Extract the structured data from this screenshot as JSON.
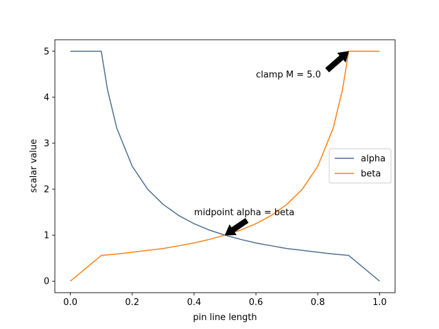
{
  "chart_data": {
    "type": "line",
    "xlabel": "pin line length",
    "ylabel": "scalar value",
    "xlim": [
      -0.05,
      1.05
    ],
    "ylim": [
      -0.25,
      5.25
    ],
    "xticks": [
      0.0,
      0.2,
      0.4,
      0.6,
      0.8,
      1.0
    ],
    "xtick_labels": [
      "0.0",
      "0.2",
      "0.4",
      "0.6",
      "0.8",
      "1.0"
    ],
    "yticks": [
      0,
      1,
      2,
      3,
      4,
      5
    ],
    "ytick_labels": [
      "0",
      "1",
      "2",
      "3",
      "4",
      "5"
    ],
    "grid": false,
    "legend_position": "center-right",
    "series": [
      {
        "name": "alpha",
        "color": "#4c6f90",
        "x": [
          0.0,
          0.05,
          0.1,
          0.12,
          0.15,
          0.2,
          0.25,
          0.3,
          0.35,
          0.4,
          0.45,
          0.5,
          0.55,
          0.6,
          0.65,
          0.7,
          0.75,
          0.8,
          0.85,
          0.9,
          0.95,
          1.0
        ],
        "y": [
          5.0,
          5.0,
          5.0,
          4.17,
          3.33,
          2.5,
          2.0,
          1.67,
          1.43,
          1.25,
          1.11,
          1.0,
          0.91,
          0.83,
          0.77,
          0.71,
          0.67,
          0.63,
          0.59,
          0.56,
          0.28,
          0.0
        ]
      },
      {
        "name": "beta",
        "color": "#ff7f0e",
        "x": [
          0.0,
          0.05,
          0.1,
          0.15,
          0.2,
          0.25,
          0.3,
          0.35,
          0.4,
          0.45,
          0.5,
          0.55,
          0.6,
          0.65,
          0.7,
          0.75,
          0.8,
          0.85,
          0.88,
          0.9,
          0.95,
          1.0
        ],
        "y": [
          0.0,
          0.28,
          0.56,
          0.59,
          0.63,
          0.67,
          0.71,
          0.77,
          0.83,
          0.91,
          1.0,
          1.11,
          1.25,
          1.43,
          1.67,
          2.0,
          2.5,
          3.33,
          4.17,
          5.0,
          5.0,
          5.0
        ]
      }
    ],
    "annotations": [
      {
        "text": "clamp M = 5.0",
        "point": [
          0.9,
          5.0
        ],
        "text_at": [
          0.6,
          4.5
        ]
      },
      {
        "text": "midpoint alpha = beta",
        "point": [
          0.5,
          1.0
        ],
        "text_at": [
          0.4,
          1.5
        ]
      }
    ]
  }
}
